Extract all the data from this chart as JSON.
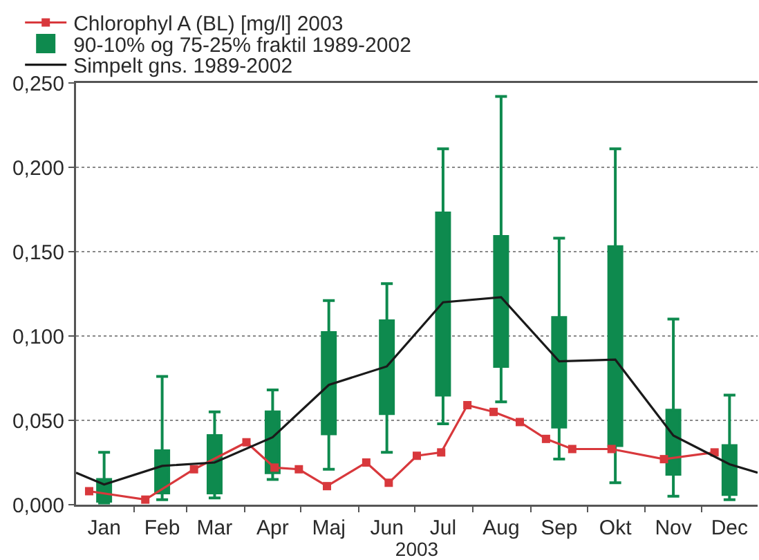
{
  "chart_data": {
    "type": "line",
    "xlabel": "2003",
    "xlim": [
      "2003-01-01",
      "2003-12-31"
    ],
    "xticks": [
      {
        "value": "2003-01-16",
        "label": "Jan"
      },
      {
        "value": "2003-02-16",
        "label": "Feb"
      },
      {
        "value": "2003-03-16",
        "label": "Mar"
      },
      {
        "value": "2003-04-16",
        "label": "Apr"
      },
      {
        "value": "2003-05-16",
        "label": "Maj"
      },
      {
        "value": "2003-06-16",
        "label": "Jun"
      },
      {
        "value": "2003-07-16",
        "label": "Jul"
      },
      {
        "value": "2003-08-16",
        "label": "Aug"
      },
      {
        "value": "2003-09-16",
        "label": "Sep"
      },
      {
        "value": "2003-10-16",
        "label": "Okt"
      },
      {
        "value": "2003-11-16",
        "label": "Nov"
      },
      {
        "value": "2003-12-16",
        "label": "Dec"
      },
      {
        "value": "2003-02-01",
        "label": null
      },
      {
        "value": "2003-03-01",
        "label": null
      },
      {
        "value": "2003-04-01",
        "label": null
      },
      {
        "value": "2003-05-01",
        "label": null
      },
      {
        "value": "2003-06-01",
        "label": null
      },
      {
        "value": "2003-07-01",
        "label": null
      },
      {
        "value": "2003-08-01",
        "label": null
      },
      {
        "value": "2003-09-01",
        "label": null
      },
      {
        "value": "2003-10-01",
        "label": null
      },
      {
        "value": "2003-11-01",
        "label": null
      },
      {
        "value": "2003-12-01",
        "label": null
      }
    ],
    "ylim": [
      0,
      0.25
    ],
    "yticks": [
      {
        "value": 0,
        "label": "0,000"
      },
      {
        "value": 0.05,
        "label": "0,050"
      },
      {
        "value": 0.1,
        "label": "0,100"
      },
      {
        "value": 0.15,
        "label": "0,150"
      },
      {
        "value": 0.2,
        "label": "0,200"
      },
      {
        "value": 0.25,
        "label": "0,250"
      }
    ],
    "grid": "y",
    "legend": "top left",
    "series": [
      {
        "name": "Chlorophyl A (BL) [mg/l] 2003",
        "color": "#d8383c",
        "marker": "square",
        "x": [
          "2003-01-08",
          "2003-02-07",
          "2003-03-05",
          "2003-04-02",
          "2003-04-17",
          "2003-04-30",
          "2003-05-15",
          "2003-06-05",
          "2003-06-17",
          "2003-07-02",
          "2003-07-15",
          "2003-07-29",
          "2003-08-12",
          "2003-08-26",
          "2003-09-09",
          "2003-09-23",
          "2003-10-14",
          "2003-11-11",
          "2003-12-08"
        ],
        "values": [
          0.008,
          0.003,
          0.021,
          0.037,
          0.022,
          0.021,
          0.011,
          0.025,
          0.013,
          0.029,
          0.031,
          0.059,
          0.055,
          0.049,
          0.039,
          0.033,
          0.033,
          0.027,
          0.031
        ]
      },
      {
        "name": "90-10% og 75-25% fraktil 1989-2002",
        "type": "box",
        "color": "#0e8a4e",
        "x": [
          "2003-01-16",
          "2003-02-16",
          "2003-03-16",
          "2003-04-16",
          "2003-05-16",
          "2003-06-16",
          "2003-07-16",
          "2003-08-16",
          "2003-09-16",
          "2003-10-16",
          "2003-11-16",
          "2003-12-16"
        ],
        "boxes": [
          {
            "low": 0.001,
            "q1": 0.002,
            "q3": 0.015,
            "high": 0.031
          },
          {
            "low": 0.003,
            "q1": 0.007,
            "q3": 0.032,
            "high": 0.076
          },
          {
            "low": 0.004,
            "q1": 0.007,
            "q3": 0.041,
            "high": 0.055
          },
          {
            "low": 0.015,
            "q1": 0.019,
            "q3": 0.055,
            "high": 0.068
          },
          {
            "low": 0.021,
            "q1": 0.042,
            "q3": 0.102,
            "high": 0.121
          },
          {
            "low": 0.031,
            "q1": 0.054,
            "q3": 0.109,
            "high": 0.131
          },
          {
            "low": 0.048,
            "q1": 0.065,
            "q3": 0.173,
            "high": 0.211
          },
          {
            "low": 0.061,
            "q1": 0.082,
            "q3": 0.159,
            "high": 0.242
          },
          {
            "low": 0.027,
            "q1": 0.046,
            "q3": 0.111,
            "high": 0.158
          },
          {
            "low": 0.013,
            "q1": 0.035,
            "q3": 0.153,
            "high": 0.211
          },
          {
            "low": 0.005,
            "q1": 0.018,
            "q3": 0.056,
            "high": 0.11
          },
          {
            "low": 0.003,
            "q1": 0.006,
            "q3": 0.035,
            "high": 0.065
          }
        ]
      },
      {
        "name": "Simpelt gns. 1989-2002",
        "color": "#1a1a1a",
        "x": [
          "2003-01-01",
          "2003-01-16",
          "2003-02-16",
          "2003-03-16",
          "2003-04-16",
          "2003-05-16",
          "2003-06-16",
          "2003-07-16",
          "2003-08-16",
          "2003-09-16",
          "2003-10-16",
          "2003-11-16",
          "2003-12-16",
          "2003-12-31"
        ],
        "values": [
          0.019,
          0.012,
          0.023,
          0.025,
          0.04,
          0.071,
          0.082,
          0.12,
          0.123,
          0.085,
          0.086,
          0.041,
          0.024,
          0.019
        ]
      }
    ]
  }
}
